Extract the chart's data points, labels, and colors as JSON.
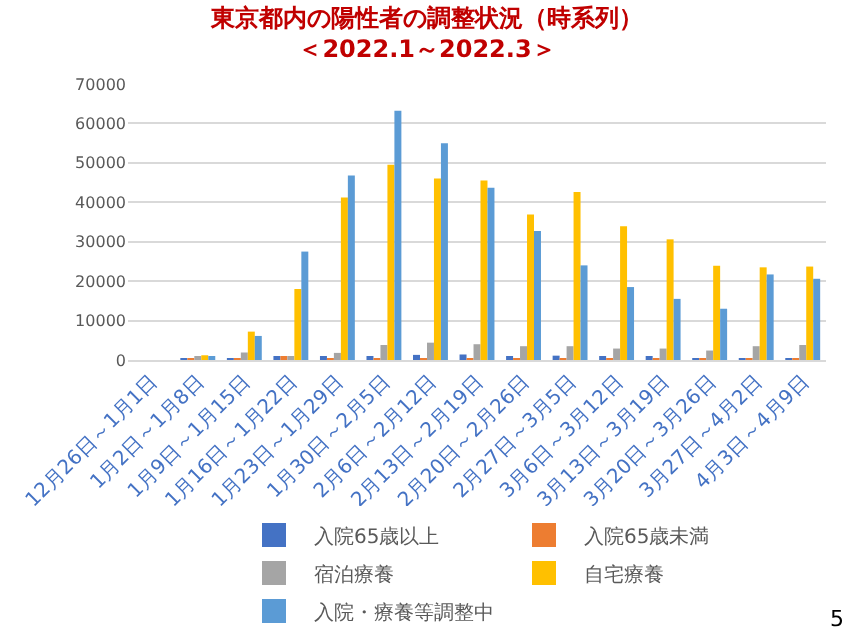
{
  "chart_data": {
    "type": "bar",
    "title": "東京都内の陽性者の調整状況（時系列）",
    "subtitle": "＜2022.1～2022.3＞",
    "categories": [
      "12月26日～1月1日",
      "1月2日～1月8日",
      "1月9日～1月15日",
      "1月16日～1月22日",
      "1月23日～1月29日",
      "1月30日～2月5日",
      "2月6日～2月12日",
      "2月13日～2月19日",
      "2月20日～2月26日",
      "2月27日～3月5日",
      "3月6日～3月12日",
      "3月13日～3月19日",
      "3月20日～3月26日",
      "3月27日～4月2日",
      "4月3日～4月9日"
    ],
    "series": [
      {
        "name": "入院65歳以上",
        "color": "#4472c4",
        "values": [
          0,
          100,
          300,
          700,
          1000,
          1000,
          1300,
          1400,
          900,
          1100,
          600,
          600,
          300,
          400,
          400
        ]
      },
      {
        "name": "入院65歳未満",
        "color": "#ed7d31",
        "values": [
          0,
          300,
          400,
          600,
          500,
          500,
          400,
          400,
          500,
          400,
          300,
          300,
          200,
          300,
          300
        ]
      },
      {
        "name": "宿泊療養",
        "color": "#a5a5a5",
        "values": [
          0,
          900,
          1900,
          1000,
          1800,
          3800,
          4400,
          4000,
          3500,
          3500,
          2900,
          2900,
          2400,
          3500,
          3800
        ]
      },
      {
        "name": "自宅療養",
        "color": "#ffc000",
        "values": [
          0,
          1200,
          7200,
          18000,
          41200,
          49500,
          46000,
          45500,
          36900,
          42600,
          33900,
          30600,
          23900,
          23500,
          23700
        ]
      },
      {
        "name": "入院・療養等調整中",
        "color": "#5b9bd5",
        "values": [
          0,
          700,
          6100,
          27500,
          46800,
          63200,
          55000,
          43700,
          32700,
          24000,
          18500,
          15500,
          13000,
          21700,
          20600
        ]
      }
    ],
    "ylim": [
      0,
      70000
    ],
    "yticks": [
      0,
      10000,
      20000,
      30000,
      40000,
      50000,
      60000,
      70000
    ],
    "grid": "y",
    "legend": "bottom",
    "annotations": [
      "5"
    ]
  }
}
